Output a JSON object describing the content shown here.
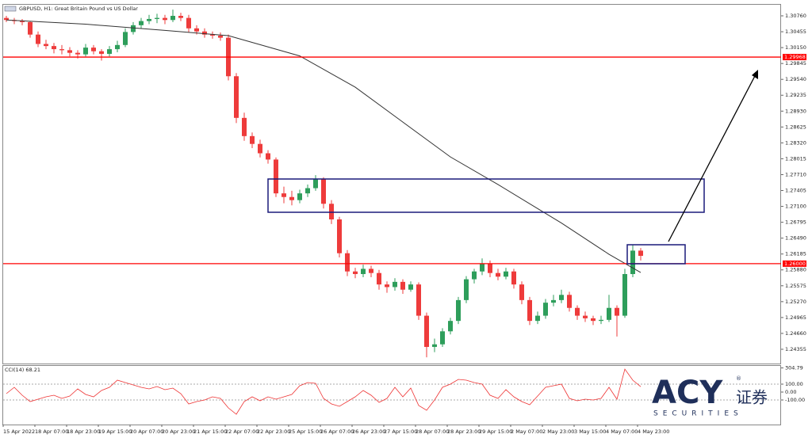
{
  "chart_data": {
    "type": "candlestick",
    "title": "GBPUSD, H1:  Great Britain Pound vs US Dollar",
    "up_color": "#2e9e5b",
    "down_color": "#ee3b3b",
    "ylim": [
      1.24096,
      1.30958
    ],
    "yticks": [
      {
        "value": 1.3076,
        "label": "1.30760"
      },
      1.30455,
      {
        "value": 1.3015,
        "label": "1.30150"
      },
      1.29845,
      {
        "value": 1.2954,
        "label": "1.29540"
      },
      1.29235,
      {
        "value": 1.2893,
        "label": "1.28930"
      },
      1.28625,
      {
        "value": 1.2832,
        "label": "1.28320"
      },
      1.28015,
      {
        "value": 1.2771,
        "label": "1.27710"
      },
      1.27405,
      {
        "value": 1.271,
        "label": "1.27100"
      },
      1.26795,
      {
        "value": 1.2649,
        "label": "1.26490"
      },
      1.26185,
      {
        "value": 1.2588,
        "label": "1.25880"
      },
      1.25575,
      {
        "value": 1.2527,
        "label": "1.25270"
      },
      1.24965,
      {
        "value": 1.2466,
        "label": "1.24660"
      },
      1.24355
    ],
    "hlines": [
      {
        "value": 1.29968,
        "color": "#ff0000"
      },
      {
        "value": 1.26,
        "label": "1.26000",
        "color": "#ff0000"
      }
    ],
    "x_labels": [
      "15 Apr 2022",
      "18 Apr 07:00",
      "18 Apr 23:00",
      "19 Apr 15:00",
      "20 Apr 07:00",
      "20 Apr 23:00",
      "21 Apr 15:00",
      "22 Apr 07:00",
      "22 Apr 23:00",
      "25 Apr 15:00",
      "26 Apr 07:00",
      "26 Apr 23:00",
      "27 Apr 15:00",
      "28 Apr 07:00",
      "28 Apr 23:00",
      "29 Apr 15:00",
      "2 May 07:00",
      "2 May 23:00",
      "3 May 15:00",
      "4 May 07:00",
      "4 May 23:00"
    ],
    "candles": [
      [
        1.3072,
        1.3076,
        1.3064,
        1.3068
      ],
      [
        1.3068,
        1.3072,
        1.306,
        1.3066
      ],
      [
        1.3066,
        1.307,
        1.3058,
        1.3064
      ],
      [
        1.3064,
        1.3066,
        1.3034,
        1.304
      ],
      [
        1.304,
        1.3046,
        1.3016,
        1.3022
      ],
      [
        1.3022,
        1.303,
        1.3012,
        1.3018
      ],
      [
        1.3018,
        1.3024,
        1.3004,
        1.3012
      ],
      [
        1.3012,
        1.302,
        1.3002,
        1.301
      ],
      [
        1.301,
        1.3016,
        1.2998,
        1.3005
      ],
      [
        1.3005,
        1.301,
        1.2994,
        1.3002
      ],
      [
        1.3002,
        1.3022,
        1.2998,
        1.3015
      ],
      [
        1.3015,
        1.302,
        1.3002,
        1.3008
      ],
      [
        1.3008,
        1.3012,
        1.299,
        1.3003
      ],
      [
        1.3003,
        1.3018,
        1.2998,
        1.3012
      ],
      [
        1.3012,
        1.3028,
        1.3006,
        1.302
      ],
      [
        1.302,
        1.3052,
        1.3016,
        1.3045
      ],
      [
        1.3045,
        1.3064,
        1.304,
        1.3058
      ],
      [
        1.3058,
        1.3072,
        1.3052,
        1.3066
      ],
      [
        1.3066,
        1.3078,
        1.306,
        1.307
      ],
      [
        1.307,
        1.308,
        1.3062,
        1.3072
      ],
      [
        1.3072,
        1.3078,
        1.306,
        1.3068
      ],
      [
        1.3068,
        1.3088,
        1.3064,
        1.3076
      ],
      [
        1.3076,
        1.3082,
        1.3066,
        1.3072
      ],
      [
        1.3072,
        1.3078,
        1.3044,
        1.3052
      ],
      [
        1.3052,
        1.3058,
        1.304,
        1.3046
      ],
      [
        1.3046,
        1.3052,
        1.3034,
        1.304
      ],
      [
        1.304,
        1.3046,
        1.3032,
        1.3038
      ],
      [
        1.3038,
        1.3044,
        1.3028,
        1.3034
      ],
      [
        1.3034,
        1.304,
        1.2952,
        1.296
      ],
      [
        1.296,
        1.2966,
        1.287,
        1.288
      ],
      [
        1.288,
        1.289,
        1.2836,
        1.2845
      ],
      [
        1.2845,
        1.2852,
        1.2822,
        1.283
      ],
      [
        1.283,
        1.2838,
        1.2804,
        1.2812
      ],
      [
        1.2812,
        1.2818,
        1.2792,
        1.28
      ],
      [
        1.28,
        1.2804,
        1.2728,
        1.2735
      ],
      [
        1.2735,
        1.2748,
        1.2716,
        1.2728
      ],
      [
        1.2728,
        1.274,
        1.2712,
        1.2722
      ],
      [
        1.2722,
        1.2742,
        1.2716,
        1.2735
      ],
      [
        1.2735,
        1.2752,
        1.2728,
        1.2745
      ],
      [
        1.2745,
        1.277,
        1.274,
        1.2762
      ],
      [
        1.2762,
        1.2766,
        1.2706,
        1.2715
      ],
      [
        1.2715,
        1.2722,
        1.2676,
        1.2685
      ],
      [
        1.2685,
        1.269,
        1.2612,
        1.262
      ],
      [
        1.262,
        1.2626,
        1.2576,
        1.2585
      ],
      [
        1.2585,
        1.2592,
        1.2572,
        1.258
      ],
      [
        1.258,
        1.2598,
        1.2574,
        1.259
      ],
      [
        1.259,
        1.2596,
        1.2574,
        1.2582
      ],
      [
        1.2582,
        1.2588,
        1.255,
        1.256
      ],
      [
        1.256,
        1.2566,
        1.2544,
        1.2555
      ],
      [
        1.2555,
        1.2572,
        1.2548,
        1.2565
      ],
      [
        1.2565,
        1.257,
        1.2542,
        1.255
      ],
      [
        1.255,
        1.2566,
        1.2546,
        1.256
      ],
      [
        1.256,
        1.2564,
        1.2492,
        1.25
      ],
      [
        1.25,
        1.2506,
        1.242,
        1.244
      ],
      [
        1.244,
        1.2456,
        1.243,
        1.2445
      ],
      [
        1.2445,
        1.2476,
        1.244,
        1.247
      ],
      [
        1.247,
        1.2496,
        1.2464,
        1.249
      ],
      [
        1.249,
        1.2536,
        1.2484,
        1.253
      ],
      [
        1.253,
        1.2576,
        1.2524,
        1.257
      ],
      [
        1.257,
        1.259,
        1.2562,
        1.2585
      ],
      [
        1.2585,
        1.261,
        1.2578,
        1.26
      ],
      [
        1.26,
        1.2606,
        1.2574,
        1.2582
      ],
      [
        1.2582,
        1.259,
        1.2568,
        1.2575
      ],
      [
        1.2575,
        1.2592,
        1.257,
        1.2585
      ],
      [
        1.2585,
        1.259,
        1.2552,
        1.256
      ],
      [
        1.256,
        1.2566,
        1.2522,
        1.253
      ],
      [
        1.253,
        1.2536,
        1.2482,
        1.249
      ],
      [
        1.249,
        1.2508,
        1.2484,
        1.25
      ],
      [
        1.25,
        1.2532,
        1.2494,
        1.2525
      ],
      [
        1.2525,
        1.254,
        1.2518,
        1.253
      ],
      [
        1.253,
        1.255,
        1.2524,
        1.254
      ],
      [
        1.254,
        1.2546,
        1.2508,
        1.2515
      ],
      [
        1.2515,
        1.252,
        1.2492,
        1.25
      ],
      [
        1.25,
        1.2508,
        1.2488,
        1.2495
      ],
      [
        1.2495,
        1.25,
        1.2482,
        1.249
      ],
      [
        1.249,
        1.25,
        1.2484,
        1.2492
      ],
      [
        1.2492,
        1.254,
        1.2488,
        1.2515
      ],
      [
        1.2515,
        1.252,
        1.246,
        1.25
      ],
      [
        1.25,
        1.259,
        1.2496,
        1.258
      ],
      [
        1.258,
        1.2636,
        1.2574,
        1.2625
      ],
      [
        1.2625,
        1.263,
        1.2606,
        1.2615
      ]
    ],
    "ma": {
      "color": "#333333",
      "x": [
        0,
        10,
        20,
        28,
        37,
        44,
        50,
        56,
        62,
        70,
        76,
        80
      ],
      "values": [
        1.3068,
        1.306,
        1.3048,
        1.3038,
        1.2999,
        1.2939,
        1.2872,
        1.2805,
        1.2752,
        1.2678,
        1.2618,
        1.2583
      ]
    },
    "indicator": {
      "label": "CCI(14) 68.21",
      "color": "#e33",
      "ylim": [
        -400,
        330
      ],
      "yticks": [
        {
          "value": 304.79,
          "label": "304.79"
        },
        {
          "value": 100,
          "label": "100.00"
        },
        {
          "value": 0,
          "label": "0.00"
        },
        {
          "value": -100,
          "label": "-100.00"
        }
      ],
      "levels": [
        100,
        -100
      ],
      "values": [
        -20,
        60,
        -40,
        -120,
        -90,
        -60,
        -40,
        -80,
        -50,
        40,
        -30,
        -60,
        20,
        60,
        150,
        120,
        90,
        60,
        40,
        70,
        30,
        50,
        -20,
        -150,
        -120,
        -100,
        -60,
        -80,
        -200,
        -280,
        -120,
        -60,
        -110,
        -60,
        -90,
        -60,
        -30,
        80,
        120,
        110,
        -80,
        -150,
        -180,
        -120,
        -60,
        20,
        -40,
        -130,
        -80,
        60,
        -60,
        50,
        -170,
        -230,
        -100,
        60,
        100,
        160,
        150,
        120,
        100,
        -40,
        -80,
        30,
        -60,
        -120,
        -160,
        -50,
        60,
        80,
        100,
        -80,
        -110,
        -90,
        -100,
        -80,
        60,
        -90,
        290,
        150,
        68.21
      ]
    }
  },
  "logo": {
    "brand": "ACY",
    "mark": "®",
    "cn": "证券",
    "sub": "SECURITIES"
  }
}
